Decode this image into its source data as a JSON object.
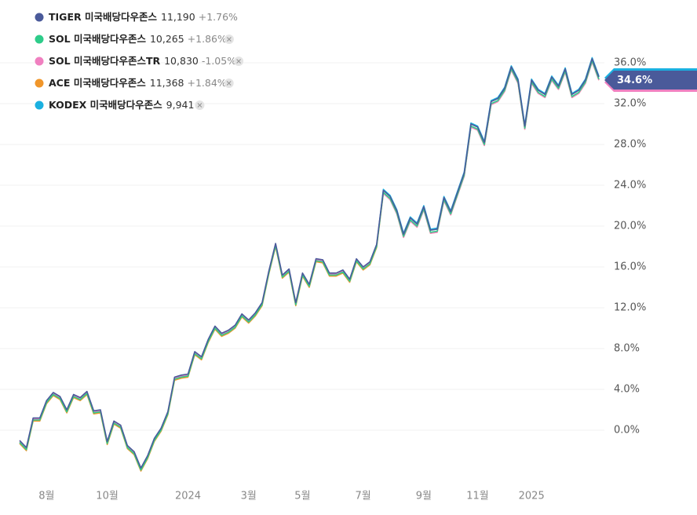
{
  "chart_data": {
    "type": "line",
    "current_label": "34.6%",
    "categories": [
      null,
      null,
      null,
      null,
      "8월",
      null,
      null,
      null,
      null,
      null,
      null,
      null,
      null,
      "10월",
      null,
      null,
      null,
      null,
      null,
      null,
      null,
      null,
      null,
      null,
      null,
      "2024",
      null,
      null,
      null,
      null,
      null,
      null,
      null,
      null,
      "3월",
      null,
      null,
      null,
      null,
      null,
      null,
      null,
      "5월",
      null,
      null,
      null,
      null,
      null,
      null,
      null,
      null,
      "7월",
      null,
      null,
      null,
      null,
      null,
      null,
      null,
      null,
      "9월",
      null,
      null,
      null,
      null,
      null,
      null,
      null,
      "11월",
      null,
      null,
      null,
      null,
      null,
      null,
      null,
      "2025",
      null,
      null,
      null,
      null,
      null,
      null,
      null,
      null,
      null,
      null
    ],
    "ylim": [
      -5,
      38
    ],
    "yticks": [
      {
        "value": 0,
        "label": "0.0%"
      },
      {
        "value": 4,
        "label": "4.0%"
      },
      {
        "value": 8,
        "label": "8.0%"
      },
      {
        "value": 12,
        "label": "12.0%"
      },
      {
        "value": 16,
        "label": "16.0%"
      },
      {
        "value": 20,
        "label": "20.0%"
      },
      {
        "value": 24,
        "label": "24.0%"
      },
      {
        "value": 28,
        "label": "28.0%"
      },
      {
        "value": 32,
        "label": "32.0%"
      },
      {
        "value": 36,
        "label": "36.0%"
      }
    ],
    "grid": true,
    "series": [
      {
        "name": "TIGER 미국배당다우존스",
        "price": "11,190",
        "change": "+1.76%",
        "color": "#4a5a9a",
        "values": [
          -1.0,
          -1.7,
          1.2,
          1.2,
          2.9,
          3.7,
          3.3,
          2.0,
          3.5,
          3.2,
          3.8,
          1.9,
          2.0,
          -1.1,
          0.9,
          0.5,
          -1.5,
          -2.1,
          -3.7,
          -2.5,
          -0.8,
          0.2,
          1.8,
          5.2,
          5.4,
          5.5,
          7.7,
          7.2,
          8.9,
          10.2,
          9.5,
          9.8,
          10.3,
          11.4,
          10.8,
          11.5,
          12.5,
          15.6,
          18.3,
          15.2,
          15.8,
          12.5,
          15.4,
          14.3,
          16.8,
          16.7,
          15.4,
          15.4,
          15.7,
          14.8,
          16.8,
          16.0,
          16.5,
          18.2,
          23.5,
          22.9,
          21.5,
          19.2,
          20.8,
          20.2,
          21.9,
          19.6,
          19.7,
          22.8,
          21.4,
          23.3,
          25.2,
          30.0,
          29.7,
          28.2,
          32.2,
          32.5,
          33.5,
          35.6,
          34.3,
          29.8,
          34.3,
          33.3,
          32.9,
          34.6,
          33.7,
          35.4,
          32.9,
          33.3,
          34.3,
          36.4,
          34.6
        ]
      },
      {
        "name": "SOL 미국배당다우존스",
        "price": "10,265",
        "change": "+1.86%",
        "color": "#2ecc8a",
        "values": [
          -1.2,
          -1.9,
          1.0,
          1.0,
          2.7,
          3.5,
          3.1,
          1.8,
          3.3,
          3.0,
          3.6,
          1.7,
          1.8,
          -1.3,
          0.7,
          0.3,
          -1.7,
          -2.3,
          -3.9,
          -2.7,
          -1.0,
          0.0,
          1.6,
          5.0,
          5.2,
          5.3,
          7.5,
          7.0,
          8.7,
          10.0,
          9.3,
          9.6,
          10.1,
          11.2,
          10.6,
          11.3,
          12.3,
          15.4,
          18.1,
          15.0,
          15.6,
          12.3,
          15.2,
          14.1,
          16.6,
          16.5,
          15.2,
          15.2,
          15.5,
          14.6,
          16.6,
          15.8,
          16.3,
          18.0,
          23.3,
          22.7,
          21.3,
          19.0,
          20.6,
          20.0,
          21.7,
          19.4,
          19.5,
          22.6,
          21.2,
          23.1,
          25.0,
          29.8,
          29.5,
          28.0,
          32.0,
          32.3,
          33.3,
          35.4,
          34.1,
          29.6,
          34.1,
          33.1,
          32.7,
          34.4,
          33.5,
          35.2,
          32.7,
          33.1,
          34.1,
          36.2,
          34.4
        ]
      },
      {
        "name": "SOL 미국배당다우존스TR",
        "price": "10,830",
        "change": "-1.05%",
        "color": "#f080c0",
        "values": [
          -1.1,
          -1.8,
          1.1,
          1.1,
          2.8,
          3.6,
          3.2,
          1.9,
          3.4,
          3.1,
          3.7,
          1.8,
          1.9,
          -1.2,
          0.8,
          0.4,
          -1.6,
          -2.2,
          -3.8,
          -2.6,
          -0.9,
          0.1,
          1.7,
          5.1,
          5.3,
          5.4,
          7.6,
          7.1,
          8.8,
          10.1,
          9.4,
          9.7,
          10.2,
          11.3,
          10.7,
          11.4,
          12.4,
          15.5,
          18.2,
          15.1,
          15.7,
          12.4,
          15.3,
          14.2,
          16.7,
          16.6,
          15.3,
          15.3,
          15.6,
          14.7,
          16.7,
          15.9,
          16.4,
          18.1,
          23.2,
          22.6,
          21.2,
          18.9,
          20.5,
          19.9,
          21.6,
          19.3,
          19.4,
          22.5,
          21.1,
          23.0,
          24.9,
          29.7,
          29.4,
          27.9,
          31.9,
          32.2,
          33.2,
          35.3,
          34.0,
          29.5,
          34.0,
          33.0,
          32.6,
          34.3,
          33.4,
          35.1,
          32.6,
          33.0,
          34.0,
          36.1,
          34.3
        ]
      },
      {
        "name": "ACE 미국배당다우존스",
        "price": "11,368",
        "change": "+1.84%",
        "color": "#f0962a",
        "values": [
          -1.3,
          -2.0,
          0.9,
          0.9,
          2.6,
          3.4,
          3.0,
          1.7,
          3.2,
          2.9,
          3.5,
          1.6,
          1.7,
          -1.4,
          0.6,
          0.2,
          -1.8,
          -2.4,
          -4.0,
          -2.8,
          -1.1,
          -0.1,
          1.5,
          4.9,
          5.1,
          5.2,
          7.4,
          6.9,
          8.6,
          9.9,
          9.2,
          9.5,
          10.0,
          11.1,
          10.5,
          11.2,
          12.2,
          15.3,
          18.0,
          14.9,
          15.5,
          12.2,
          15.1,
          14.0,
          16.5,
          16.4,
          15.1,
          15.1,
          15.4,
          14.5,
          16.5,
          15.7,
          16.2,
          17.9,
          23.2,
          22.6,
          21.2,
          18.9,
          20.5,
          19.9,
          21.6,
          19.3,
          19.4,
          22.5,
          21.1,
          23.0,
          24.9,
          29.7,
          29.4,
          27.9,
          31.9,
          32.2,
          33.2,
          35.3,
          34.0,
          29.5,
          34.0,
          33.0,
          32.6,
          34.3,
          33.4,
          35.1,
          32.6,
          33.0,
          34.0,
          36.1,
          34.3
        ]
      },
      {
        "name": "KODEX 미국배당다우존스",
        "price": "9,941",
        "color": "#1ab0e0",
        "values": [
          -1.2,
          -1.9,
          1.0,
          1.0,
          2.7,
          3.5,
          3.1,
          1.8,
          3.3,
          3.0,
          3.6,
          1.7,
          1.8,
          -1.3,
          0.7,
          0.3,
          -1.7,
          -2.3,
          -3.9,
          -2.7,
          -1.0,
          0.0,
          1.6,
          5.0,
          5.2,
          5.3,
          7.5,
          7.0,
          8.7,
          10.0,
          9.3,
          9.6,
          10.1,
          11.2,
          10.6,
          11.3,
          12.3,
          15.4,
          18.1,
          15.0,
          15.6,
          12.3,
          15.2,
          14.1,
          16.6,
          16.5,
          15.2,
          15.2,
          15.5,
          14.6,
          16.6,
          15.8,
          16.3,
          18.0,
          23.6,
          23.0,
          21.6,
          19.3,
          20.9,
          20.3,
          22.0,
          19.7,
          19.8,
          22.9,
          21.5,
          23.4,
          25.3,
          30.1,
          29.8,
          28.3,
          32.3,
          32.6,
          33.6,
          35.7,
          34.4,
          29.9,
          34.4,
          33.4,
          33.0,
          34.7,
          33.8,
          35.5,
          33.0,
          33.4,
          34.4,
          36.5,
          34.7
        ]
      }
    ]
  }
}
